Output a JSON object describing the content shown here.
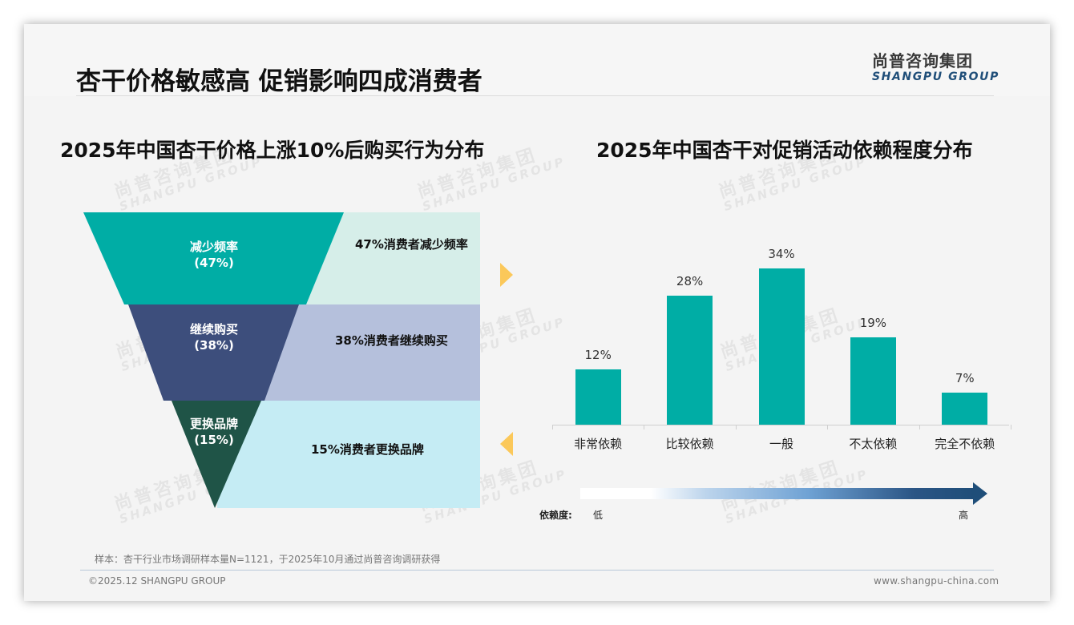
{
  "header": {
    "title": "杏干价格敏感高 促销影响四成消费者",
    "logo_cn": "尚普咨询集团",
    "logo_en": "SHANGPU GROUP"
  },
  "watermark": {
    "cn": "尚普咨询集团",
    "en": "SHANGPU GROUP"
  },
  "left_panel": {
    "title": "2025年中国杏干价格上涨10%后购买行为分布",
    "stages": [
      {
        "name": "减少频率",
        "pct": "(47%)",
        "desc": "47%消费者减少频率",
        "color": "#00ada5",
        "band_color": "#d6eee9"
      },
      {
        "name": "继续购买",
        "pct": "(38%)",
        "desc": "38%消费者继续购买",
        "color": "#3d4e7c",
        "band_color": "#b5c0dc"
      },
      {
        "name": "更换品牌",
        "pct": "(15%)",
        "desc": "15%消费者更换品牌",
        "color": "#1f5447",
        "band_color": "#c5ecf4"
      }
    ],
    "arrow_color": "#fbc85a"
  },
  "right_panel": {
    "title": "2025年中国杏干对促销活动依赖程度分布",
    "dependency_label": "依赖度:",
    "low_label": "低",
    "high_label": "高"
  },
  "chart_data": [
    {
      "type": "funnel",
      "title": "2025年中国杏干价格上涨10%后购买行为分布",
      "categories": [
        "减少频率",
        "继续购买",
        "更换品牌"
      ],
      "values": [
        47,
        38,
        15
      ],
      "unit": "%"
    },
    {
      "type": "bar",
      "title": "2025年中国杏干对促销活动依赖程度分布",
      "categories": [
        "非常依赖",
        "比较依赖",
        "一般",
        "不太依赖",
        "完全不依赖"
      ],
      "values": [
        12,
        28,
        34,
        19,
        7
      ],
      "value_labels": [
        "12%",
        "28%",
        "34%",
        "19%",
        "7%"
      ],
      "xlabel": "",
      "ylabel": "",
      "ylim": [
        0,
        35
      ],
      "grid": false,
      "bar_color": "#00ada5",
      "annotation": "依赖度: 低 → 高"
    }
  ],
  "footer": {
    "source": "样本：杏干行业市场调研样本量N=1121，于2025年10月通过尚普咨询调研获得",
    "copyright": "©2025.12 SHANGPU GROUP",
    "website": "www.shangpu-china.com"
  }
}
